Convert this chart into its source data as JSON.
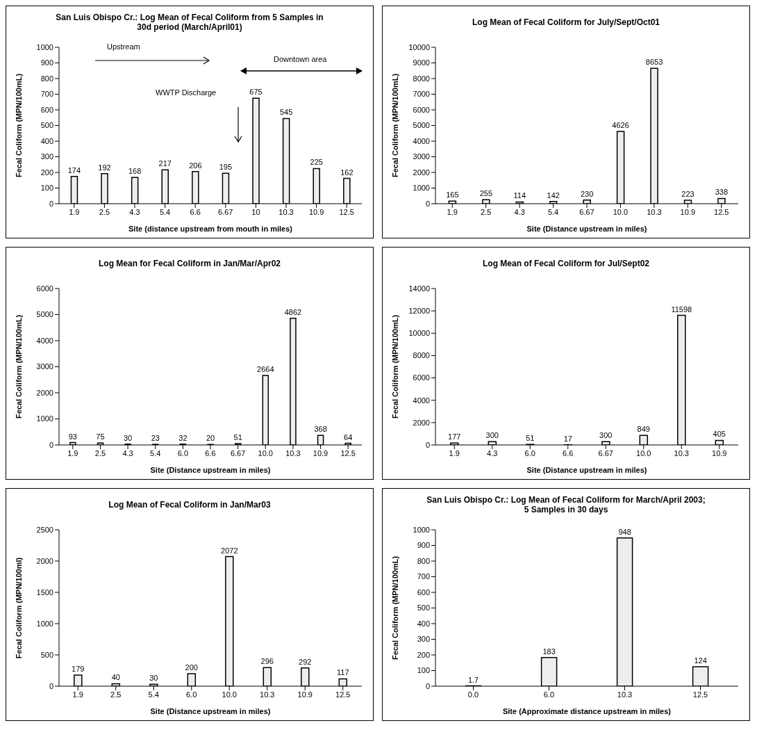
{
  "chart_data": [
    {
      "type": "bar",
      "title": "San Luis Obispo Cr.: Log Mean of Fecal Coliform from 5 Samples in 30d period (March/April01)",
      "xlabel": "Site (distance upstream from mouth in miles)",
      "ylabel": "Fecal Coliform (MPN/100mL)",
      "categories": [
        "1.9",
        "2.5",
        "4.3",
        "5.4",
        "6.6",
        "6.67",
        "10",
        "10.3",
        "10.9",
        "12.5"
      ],
      "values": [
        174,
        192,
        168,
        217,
        206,
        195,
        675,
        545,
        225,
        162
      ],
      "color": "#eeeeee",
      "ylim": [
        0,
        1000
      ],
      "yticks": [
        0,
        100,
        200,
        300,
        400,
        500,
        600,
        700,
        800,
        900,
        1000
      ],
      "data_labels": true,
      "grid": false,
      "legend": false,
      "annotations": [
        "Upstream",
        "Downtown area",
        "WWTP Discharge"
      ]
    },
    {
      "type": "bar",
      "title": "Log Mean of Fecal Coliform for July/Sept/Oct01",
      "xlabel": "Site (Distance upstream in miles)",
      "ylabel": "Fecal Coliform (MPN/100mL)",
      "categories": [
        "1.9",
        "2.5",
        "4.3",
        "5.4",
        "6.67",
        "10.0",
        "10.3",
        "10.9",
        "12.5"
      ],
      "values": [
        165,
        255,
        114,
        142,
        230,
        4626,
        8653,
        223,
        338
      ],
      "color": "#eeeeee",
      "ylim": [
        0,
        10000
      ],
      "yticks": [
        0,
        1000,
        2000,
        3000,
        4000,
        5000,
        6000,
        7000,
        8000,
        9000,
        10000
      ],
      "data_labels": true,
      "grid": false,
      "legend": false
    },
    {
      "type": "bar",
      "title": "Log Mean for Fecal Coliform in Jan/Mar/Apr02",
      "xlabel": "Site (Distance upstream in miles)",
      "ylabel": "Fecal Coliform (MPN/100mL)",
      "categories": [
        "1.9",
        "2.5",
        "4.3",
        "5.4",
        "6.0",
        "6.6",
        "6.67",
        "10.0",
        "10.3",
        "10.9",
        "12.5"
      ],
      "values": [
        93,
        75,
        30,
        23,
        32,
        20,
        51,
        2664,
        4862,
        368,
        64
      ],
      "color": "#eeeeee",
      "ylim": [
        0,
        6000
      ],
      "yticks": [
        0,
        1000,
        2000,
        3000,
        4000,
        5000,
        6000
      ],
      "data_labels": true,
      "grid": false,
      "legend": false
    },
    {
      "type": "bar",
      "title": "Log Mean of Fecal Coliform for Jul/Sept02",
      "xlabel": "Site (Distance upstream in miles)",
      "ylabel": "Fecal Coliform (MPN/100mL)",
      "categories": [
        "1.9",
        "4.3",
        "6.0",
        "6.6",
        "6.67",
        "10.0",
        "10.3",
        "10.9"
      ],
      "values": [
        177,
        300,
        51,
        17,
        300,
        849,
        11598,
        405
      ],
      "color": "#eeeeee",
      "ylim": [
        0,
        14000
      ],
      "yticks": [
        0,
        2000,
        4000,
        6000,
        8000,
        10000,
        12000,
        14000
      ],
      "data_labels": true,
      "grid": false,
      "legend": false
    },
    {
      "type": "bar",
      "title": "Log Mean of Fecal Coliform in Jan/Mar03",
      "xlabel": "Site (Distance upstream in miles)",
      "ylabel": "Fecal Coliform (MPN/100ml)",
      "categories": [
        "1.9",
        "2.5",
        "5.4",
        "6.0",
        "10.0",
        "10.3",
        "10.9",
        "12.5"
      ],
      "values": [
        179,
        40,
        30,
        200,
        2072,
        296,
        292,
        117
      ],
      "color": "#eeeeee",
      "ylim": [
        0,
        2500
      ],
      "yticks": [
        0,
        500,
        1000,
        1500,
        2000,
        2500
      ],
      "data_labels": true,
      "grid": false,
      "legend": false
    },
    {
      "type": "bar",
      "title": "San Luis Obispo Cr.: Log Mean of Fecal Coliform for March/April 2003; 5 Samples in 30 days",
      "xlabel": "Site (Approximate distance upstream in miles)",
      "ylabel": "Fecal Coliform (MPN/100mL)",
      "categories": [
        "0.0",
        "6.0",
        "10.3",
        "12.5"
      ],
      "values": [
        1.7,
        183,
        948,
        124
      ],
      "color": "#eeeeee",
      "ylim": [
        0,
        1000
      ],
      "yticks": [
        0,
        100,
        200,
        300,
        400,
        500,
        600,
        700,
        800,
        900,
        1000
      ],
      "data_labels": true,
      "grid": false,
      "legend": false
    }
  ]
}
